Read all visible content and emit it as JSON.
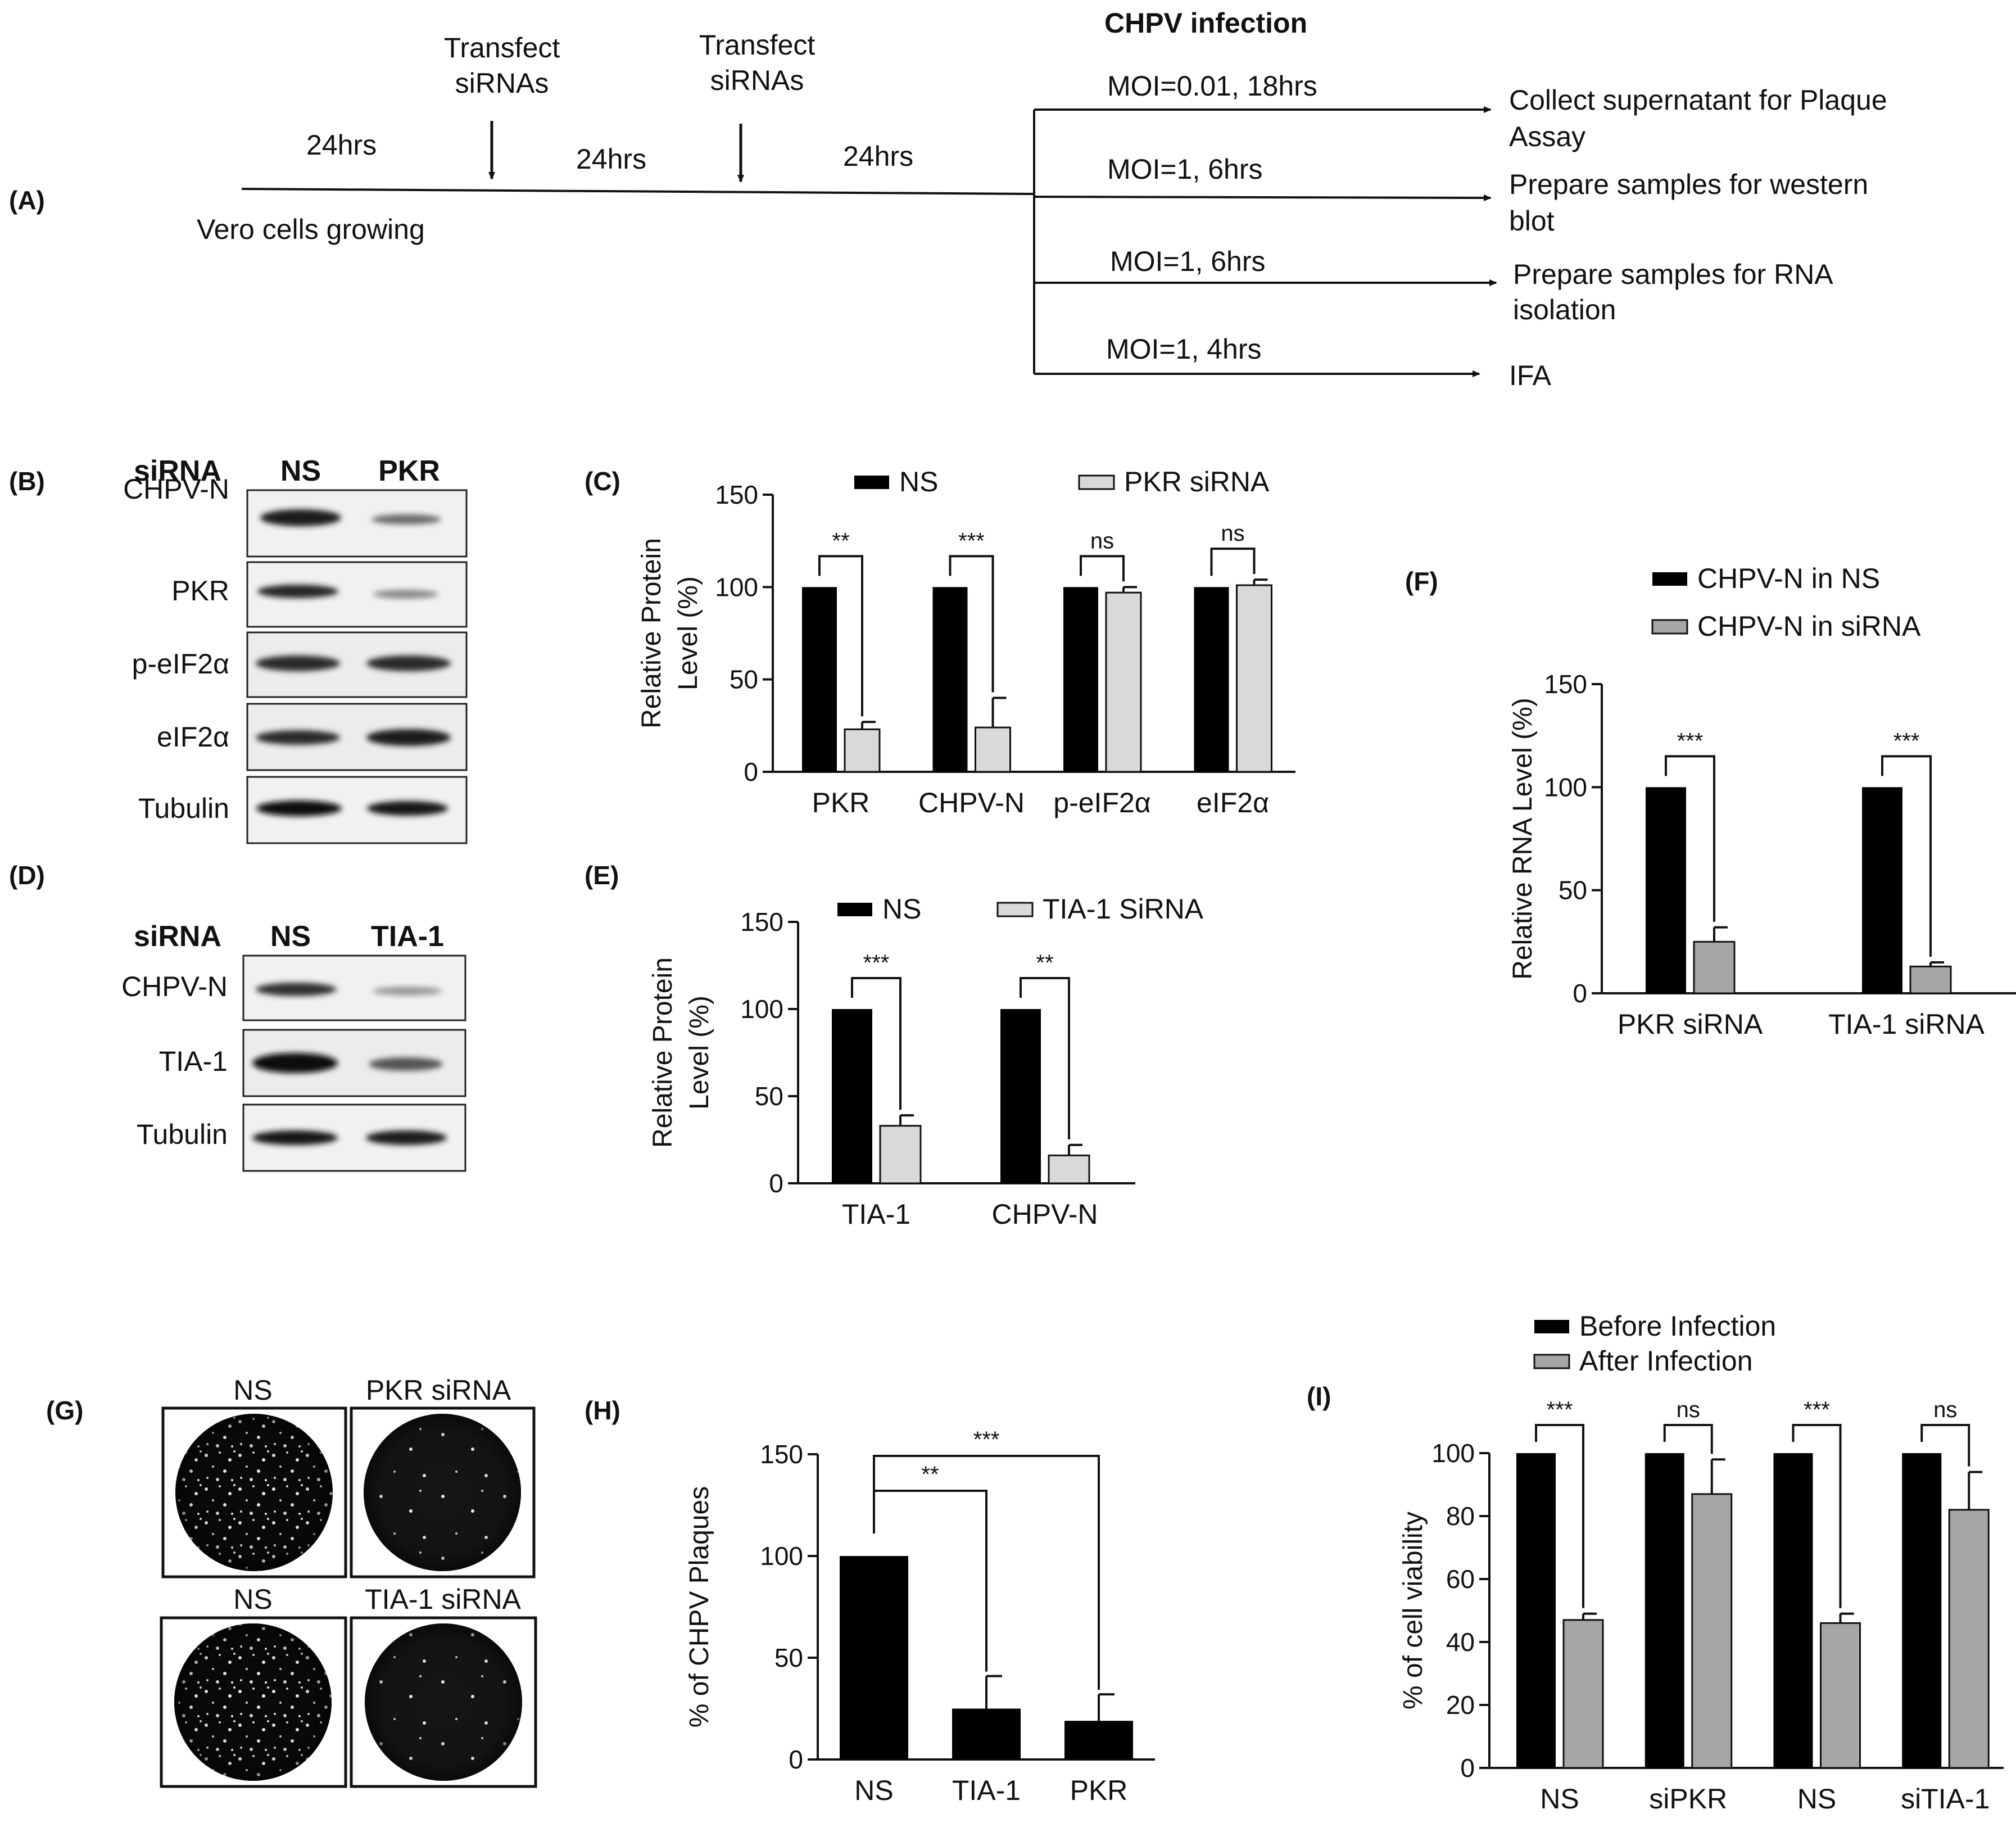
{
  "panels": {
    "A": {
      "letter": "(A)",
      "header": "CHPV infection",
      "cells_label": "Vero cells growing",
      "durations": [
        "24hrs",
        "24hrs",
        "24hrs"
      ],
      "transfect1": [
        "Transfect",
        "siRNAs"
      ],
      "transfect2": [
        "Transfect",
        "siRNAs"
      ],
      "branches": [
        {
          "condition": "MOI=0.01, 18hrs",
          "outcome": [
            "Collect supernatant for Plaque",
            "Assay"
          ]
        },
        {
          "condition": "MOI=1,   6hrs",
          "outcome": [
            "Prepare samples for western",
            "blot"
          ]
        },
        {
          "condition": "MOI=1,   6hrs",
          "outcome": [
            "Prepare samples for RNA",
            "isolation"
          ]
        },
        {
          "condition": "MOI=1,   4hrs",
          "outcome": [
            "IFA"
          ]
        }
      ]
    },
    "B": {
      "letter": "(B)",
      "header": {
        "row": "siRNA",
        "lanes": [
          "NS",
          "PKR"
        ]
      },
      "rows": [
        "CHPV-N",
        "PKR",
        "p-eIF2α",
        "eIF2α",
        "Tubulin"
      ]
    },
    "D": {
      "letter": "(D)",
      "header": {
        "row": "siRNA",
        "lanes": [
          "NS",
          "TIA-1"
        ]
      },
      "rows": [
        "CHPV-N",
        "TIA-1",
        "Tubulin"
      ]
    },
    "G": {
      "letter": "(G)",
      "labels": [
        "NS",
        "PKR siRNA",
        "NS",
        "TIA-1 siRNA"
      ]
    },
    "C": {
      "letter": "(C)"
    },
    "E": {
      "letter": "(E)"
    },
    "F": {
      "letter": "(F)"
    },
    "H": {
      "letter": "(H)"
    },
    "I": {
      "letter": "(I)"
    }
  },
  "colors": {
    "black_bar": "#000000",
    "light_bar": "#d9d9d9",
    "gray_bar": "#a6a6a6"
  },
  "chart_data": [
    {
      "id": "C",
      "type": "bar",
      "ylabel": [
        "Relative Protein",
        "Level (%)"
      ],
      "ylim": [
        0,
        150
      ],
      "yticks": [
        0,
        50,
        100,
        150
      ],
      "categories": [
        "PKR",
        "CHPV-N",
        "p-eIF2α",
        "eIF2α"
      ],
      "series": [
        {
          "name": "NS",
          "values": [
            100,
            100,
            100,
            100
          ],
          "errors": [
            0,
            0,
            0,
            0
          ]
        },
        {
          "name": "PKR siRNA",
          "values": [
            23,
            24,
            97,
            101
          ],
          "errors": [
            4,
            16,
            3,
            3
          ]
        }
      ],
      "significance": [
        "**",
        "***",
        "ns",
        "ns"
      ],
      "legend": "top"
    },
    {
      "id": "E",
      "type": "bar",
      "ylabel": [
        "Relative Protein",
        "Level (%)"
      ],
      "ylim": [
        0,
        150
      ],
      "yticks": [
        0,
        50,
        100,
        150
      ],
      "categories": [
        "TIA-1",
        "CHPV-N"
      ],
      "series": [
        {
          "name": "NS",
          "values": [
            100,
            100
          ],
          "errors": [
            0,
            0
          ]
        },
        {
          "name": "TIA-1 SiRNA",
          "values": [
            33,
            16
          ],
          "errors": [
            6,
            6
          ]
        }
      ],
      "significance": [
        "***",
        "**"
      ],
      "legend": "top"
    },
    {
      "id": "F",
      "type": "bar",
      "ylabel": [
        "Relative RNA Level (%)"
      ],
      "ylim": [
        0,
        150
      ],
      "yticks": [
        0,
        50,
        100,
        150
      ],
      "categories": [
        "PKR siRNA",
        "TIA-1 siRNA"
      ],
      "series": [
        {
          "name": "CHPV-N in NS",
          "values": [
            100,
            100
          ],
          "errors": [
            0,
            0
          ]
        },
        {
          "name": "CHPV-N in siRNA",
          "values": [
            25,
            13
          ],
          "errors": [
            7,
            2
          ]
        }
      ],
      "significance": [
        "***",
        "***"
      ],
      "legend": "top"
    },
    {
      "id": "H",
      "type": "bar",
      "ylabel": [
        "% of CHPV Plaques"
      ],
      "ylim": [
        0,
        150
      ],
      "yticks": [
        0,
        50,
        100,
        150
      ],
      "categories": [
        "NS",
        "TIA-1",
        "PKR"
      ],
      "values": [
        100,
        25,
        19
      ],
      "errors": [
        0,
        16,
        13
      ],
      "significance": [
        "**",
        "***"
      ]
    },
    {
      "id": "I",
      "type": "bar",
      "ylabel": [
        "% of cell viability"
      ],
      "ylim": [
        0,
        100
      ],
      "yticks": [
        0,
        20,
        40,
        60,
        80,
        100
      ],
      "categories": [
        "NS",
        "siPKR",
        "NS",
        "siTIA-1"
      ],
      "series": [
        {
          "name": "Before Infection",
          "values": [
            100,
            100,
            100,
            100
          ],
          "errors": [
            0,
            0,
            0,
            0
          ]
        },
        {
          "name": "After Infection",
          "values": [
            47,
            87,
            46,
            82
          ],
          "errors": [
            2,
            11,
            3,
            12
          ]
        }
      ],
      "significance": [
        "***",
        "ns",
        "***",
        "ns"
      ],
      "legend": "top-left"
    }
  ]
}
